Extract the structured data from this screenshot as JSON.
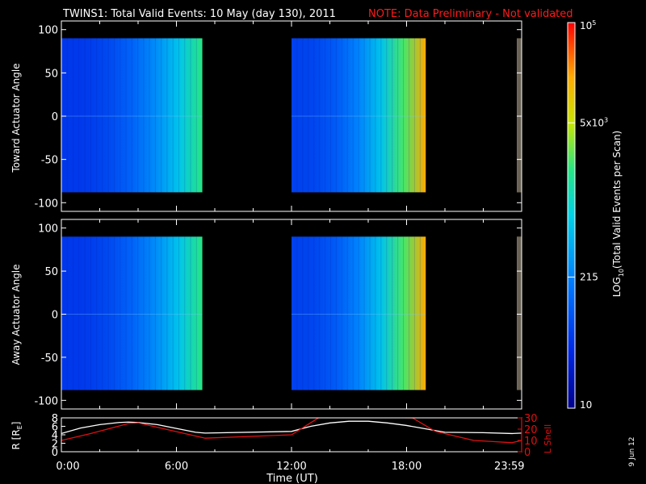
{
  "header": {
    "title": "TWINS1: Total Valid Events: 10 May (day 130), 2011",
    "note": "NOTE: Data Preliminary - Not validated"
  },
  "stamp": "9 Jun 12",
  "colors": {
    "background": "#000000",
    "axes": "#ffffff",
    "note": "#ff1a1a",
    "lshell": "#e01010",
    "radius": "#ffffff"
  },
  "chart_data": [
    {
      "type": "heatmap",
      "name": "toward-panel",
      "ylabel": "Toward Actuator Angle",
      "xlim": [
        0,
        24
      ],
      "ylim": [
        -110,
        110
      ],
      "yticks": [
        "100",
        "50",
        "0",
        "-50",
        "-100"
      ],
      "ytick_values": [
        100,
        50,
        0,
        -50,
        -100
      ],
      "angle_range": [
        -88,
        90
      ],
      "data_segments": [
        {
          "start": 0.0,
          "end": 7.35,
          "level_start": 0.18,
          "level_end": 0.62
        },
        {
          "start": 12.0,
          "end": 19.0,
          "level_start": 0.2,
          "level_end": 0.86
        },
        {
          "start": 23.75,
          "end": 24.0,
          "level_start": 0.82,
          "level_end": 0.82
        }
      ]
    },
    {
      "type": "heatmap",
      "name": "away-panel",
      "ylabel": "Away Actuator Angle",
      "xlim": [
        0,
        24
      ],
      "ylim": [
        -110,
        110
      ],
      "yticks": [
        "100",
        "50",
        "0",
        "-50",
        "-100"
      ],
      "ytick_values": [
        100,
        50,
        0,
        -50,
        -100
      ],
      "angle_range": [
        -88,
        90
      ],
      "data_segments": [
        {
          "start": 0.0,
          "end": 7.35,
          "level_start": 0.18,
          "level_end": 0.62
        },
        {
          "start": 12.0,
          "end": 19.0,
          "level_start": 0.2,
          "level_end": 0.86
        },
        {
          "start": 23.75,
          "end": 24.0,
          "level_start": 0.82,
          "level_end": 0.82
        }
      ]
    },
    {
      "type": "colorbar",
      "name": "colorbar",
      "label_prefix": "LOG",
      "label_sub": "10",
      "label_suffix": "(Total Valid Events per Scan)",
      "tick_labels": [
        {
          "base": "10",
          "exp": "5",
          "pos": 1.0
        },
        {
          "base": "5x10",
          "exp": "3",
          "pos": 0.74
        },
        {
          "base": "215",
          "exp": "",
          "pos": 0.34
        },
        {
          "base": "10",
          "exp": "",
          "pos": 0.0
        }
      ]
    },
    {
      "type": "line",
      "name": "orbit-panel",
      "xlabel": "Time (UT)",
      "xlim": [
        0,
        24
      ],
      "xticks": [
        "0:00",
        "6:00",
        "12:00",
        "18:00",
        "23:59"
      ],
      "xtick_values": [
        0,
        6,
        12,
        18,
        23.98
      ],
      "left_axis": {
        "label_main": "R [R",
        "label_sub": "E",
        "label_end": "]",
        "ylim": [
          0,
          8
        ],
        "ticks": [
          "0",
          "2",
          "4",
          "6",
          "8"
        ],
        "tick_values": [
          0,
          2,
          4,
          6,
          8
        ]
      },
      "right_axis": {
        "label": "L Shell",
        "ylim": [
          0,
          30
        ],
        "ticks": [
          "0",
          "10",
          "20",
          "30"
        ],
        "tick_values": [
          0,
          10,
          20,
          30
        ]
      },
      "series": [
        {
          "axis": "left",
          "color": "#ffffff",
          "x": [
            0,
            1,
            2,
            3,
            3.5,
            4,
            5,
            6,
            7,
            7.5,
            12,
            13,
            14,
            15,
            16,
            17,
            18,
            19,
            20,
            22,
            23.5,
            24
          ],
          "y": [
            4.3,
            5.6,
            6.4,
            6.9,
            7.0,
            6.9,
            6.4,
            5.5,
            4.6,
            4.4,
            4.8,
            6.0,
            6.8,
            7.2,
            7.2,
            6.8,
            6.2,
            5.4,
            4.6,
            4.5,
            4.3,
            4.4
          ]
        },
        {
          "axis": "right",
          "color": "#e01010",
          "x": [
            0,
            1.5,
            3.5,
            4,
            7.5,
            12,
            13.5,
            18.3,
            19.5,
            21.5,
            22.5,
            23.5,
            24
          ],
          "y": [
            10,
            16,
            25,
            25.5,
            12,
            15,
            31,
            30,
            18,
            10,
            9,
            8,
            10
          ]
        }
      ]
    }
  ]
}
